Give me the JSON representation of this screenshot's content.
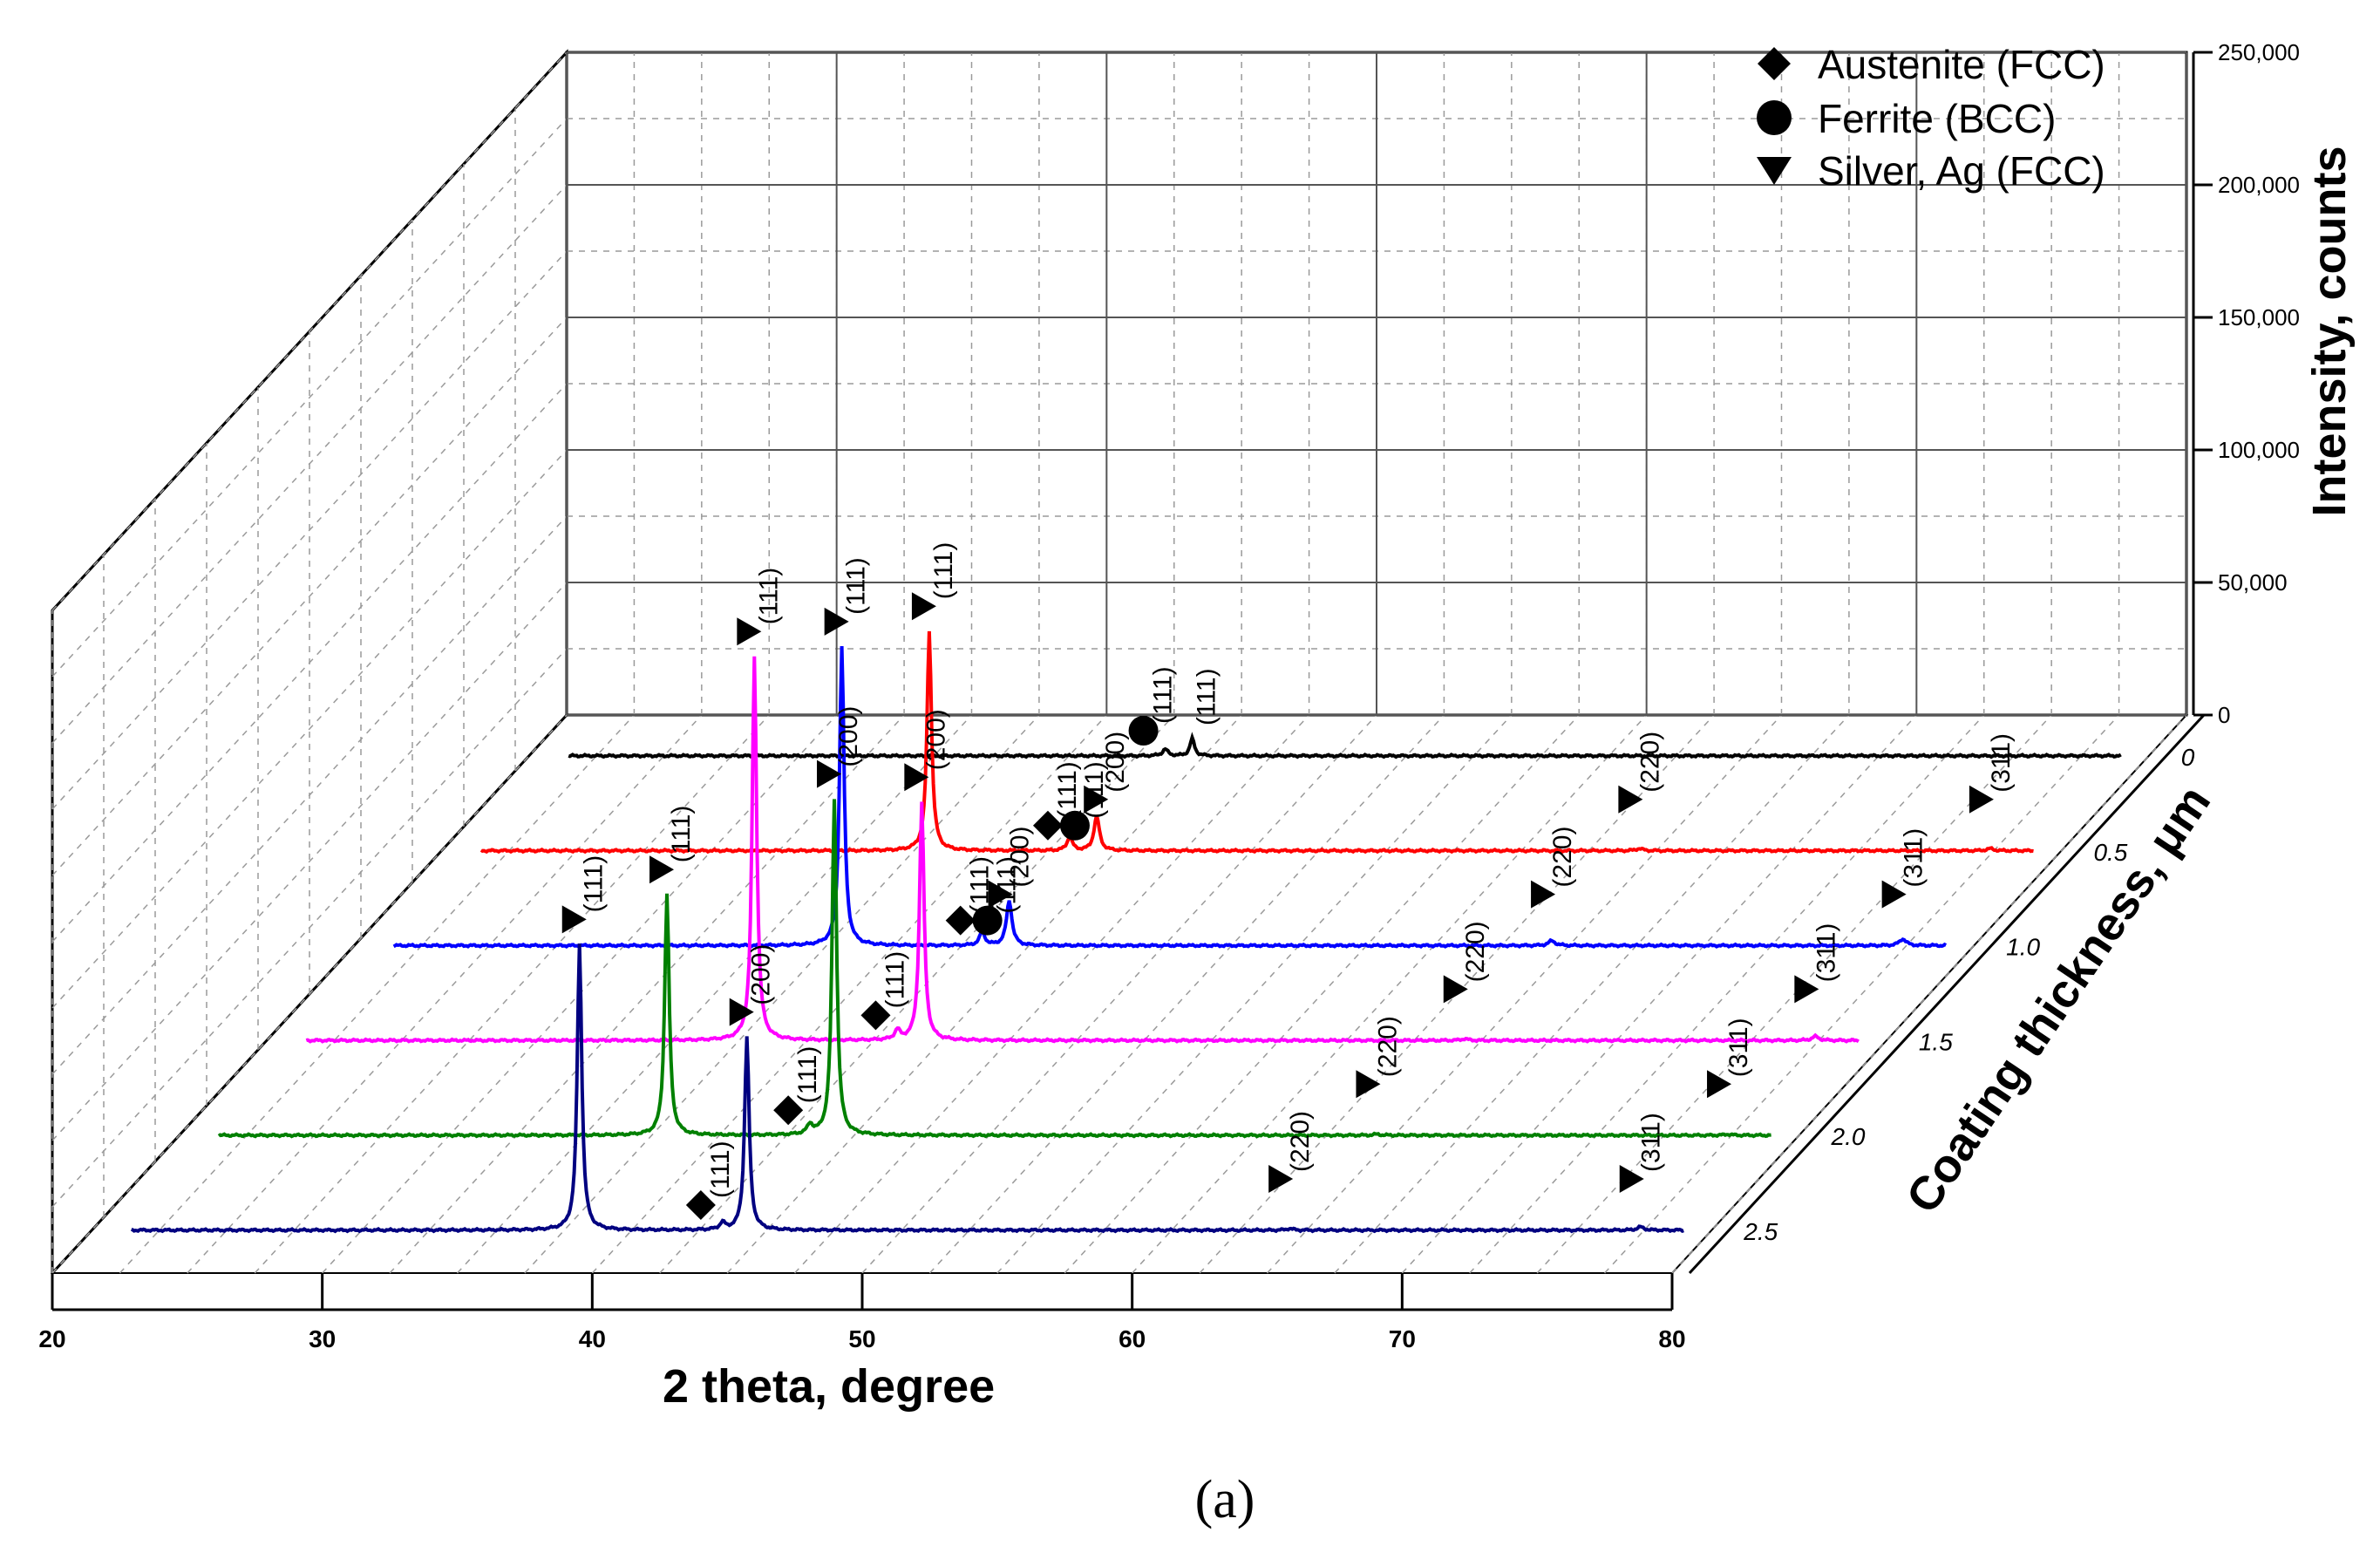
{
  "chart_data": {
    "type": "line",
    "style": "3d-waterfall",
    "xlabel": "2 theta, degree",
    "ylabel": "Coating thickness, μm",
    "zlabel": "Intensity, counts",
    "xlim": [
      20,
      80
    ],
    "x_ticks": [
      "20",
      "30",
      "40",
      "50",
      "60",
      "70",
      "80"
    ],
    "zlim": [
      0,
      250000
    ],
    "z_ticks": [
      "0",
      "50,000",
      "100,000",
      "150,000",
      "200,000",
      "250,000"
    ],
    "grid": true,
    "legend_position": "top-right",
    "legend": [
      {
        "marker": "diamond",
        "label": "Austenite (FCC)"
      },
      {
        "marker": "circle",
        "label": "Ferrite (BCC)"
      },
      {
        "marker": "triangle",
        "label": "Silver, Ag (FCC)"
      }
    ],
    "caption": "(a)",
    "series": [
      {
        "name": "0",
        "color": "#000000",
        "peaks": [
          [
            43.6,
            2500,
            0.12
          ],
          [
            44.6,
            6500,
            0.1
          ]
        ],
        "annotations": [
          {
            "x": 43.6,
            "marker": "circle",
            "label": "(111)"
          },
          {
            "x": 44.6,
            "marker": "none",
            "label": "(111)"
          }
        ]
      },
      {
        "name": "0.5",
        "color": "#ff0000",
        "peaks": [
          [
            38.1,
            83000,
            0.1
          ],
          [
            43.3,
            5000,
            0.12
          ],
          [
            44.3,
            13000,
            0.12
          ],
          [
            64.4,
            800,
            0.15
          ],
          [
            77.4,
            800,
            0.15
          ]
        ],
        "annotations": [
          {
            "x": 38.1,
            "marker": "triangle",
            "label": "(111)"
          },
          {
            "x": 43.3,
            "marker": "diamond",
            "label": "(111)"
          },
          {
            "x": 44.3,
            "marker": "circle",
            "label": "(111)"
          },
          {
            "x": 44.6,
            "marker": "triangle",
            "label": "(200)"
          },
          {
            "x": 64.4,
            "marker": "triangle",
            "label": "(220)"
          },
          {
            "x": 77.4,
            "marker": "triangle",
            "label": "(311)"
          }
        ]
      },
      {
        "name": "1.0",
        "color": "#0000ff",
        "peaks": [
          [
            38.1,
            113000,
            0.1
          ],
          [
            43.3,
            5000,
            0.12
          ],
          [
            44.3,
            17000,
            0.12
          ],
          [
            64.4,
            1800,
            0.15
          ],
          [
            77.4,
            2500,
            0.15
          ]
        ],
        "annotations": [
          {
            "x": 38.1,
            "marker": "triangle",
            "label": "(111)"
          },
          {
            "x": 43.3,
            "marker": "diamond",
            "label": "(111)"
          },
          {
            "x": 44.3,
            "marker": "circle",
            "label": "(111)"
          },
          {
            "x": 44.3,
            "marker": "triangle",
            "label": "(200)"
          },
          {
            "x": 64.4,
            "marker": "triangle",
            "label": "(220)"
          },
          {
            "x": 77.4,
            "marker": "triangle",
            "label": "(311)"
          }
        ]
      },
      {
        "name": "1.5",
        "color": "#ff00ff",
        "peaks": [
          [
            38.1,
            145000,
            0.1
          ],
          [
            43.4,
            3500,
            0.12
          ],
          [
            44.3,
            90000,
            0.1
          ],
          [
            64.4,
            600,
            0.15
          ],
          [
            77.4,
            1500,
            0.15
          ]
        ],
        "annotations": [
          {
            "x": 38.1,
            "marker": "triangle",
            "label": "(111)"
          },
          {
            "x": 43.4,
            "marker": "diamond",
            "label": "(111)"
          },
          {
            "x": 44.3,
            "marker": "triangle",
            "label": "(200)"
          },
          {
            "x": 64.4,
            "marker": "triangle",
            "label": "(220)"
          },
          {
            "x": 77.4,
            "marker": "triangle",
            "label": "(311)"
          }
        ]
      },
      {
        "name": "2.0",
        "color": "#008000",
        "peaks": [
          [
            38.1,
            91000,
            0.1
          ],
          [
            43.4,
            3500,
            0.12
          ],
          [
            44.3,
            127000,
            0.1
          ],
          [
            64.4,
            400,
            0.15
          ],
          [
            77.4,
            400,
            0.15
          ]
        ],
        "annotations": [
          {
            "x": 38.1,
            "marker": "triangle",
            "label": "(111)"
          },
          {
            "x": 43.4,
            "marker": "diamond",
            "label": "(111)"
          },
          {
            "x": 44.3,
            "marker": "triangle",
            "label": "(200)"
          },
          {
            "x": 64.4,
            "marker": "triangle",
            "label": "(220)"
          },
          {
            "x": 77.4,
            "marker": "triangle",
            "label": "(311)"
          }
        ]
      },
      {
        "name": "2.5",
        "color": "#000080",
        "peaks": [
          [
            38.1,
            108000,
            0.1
          ],
          [
            43.4,
            2500,
            0.12
          ],
          [
            44.3,
            73000,
            0.1
          ],
          [
            64.4,
            600,
            0.15
          ],
          [
            77.4,
            1200,
            0.15
          ]
        ],
        "annotations": [
          {
            "x": 38.1,
            "marker": "triangle",
            "label": "(111)"
          },
          {
            "x": 43.4,
            "marker": "diamond",
            "label": "(111)"
          },
          {
            "x": 44.3,
            "marker": "triangle",
            "label": "(200)"
          },
          {
            "x": 64.4,
            "marker": "triangle",
            "label": "(220)"
          },
          {
            "x": 77.4,
            "marker": "triangle",
            "label": "(311)"
          }
        ]
      }
    ]
  }
}
